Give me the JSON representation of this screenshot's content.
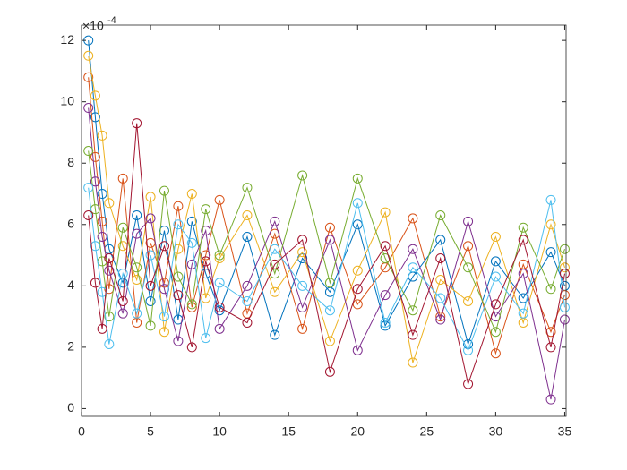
{
  "chart_data": {
    "type": "line",
    "y_multiplier": "×10",
    "y_multiplier_exponent": "-4",
    "x": [
      0.5,
      1,
      1.5,
      2,
      3,
      4,
      5,
      6,
      7,
      8,
      9,
      10,
      12,
      14,
      16,
      18,
      20,
      22,
      24,
      26,
      28,
      30,
      32,
      34,
      35
    ],
    "series": [
      {
        "color": "#0072BD",
        "values": [
          12,
          9.5,
          7,
          5.2,
          4.1,
          6.3,
          3.5,
          5.8,
          2.9,
          6.1,
          4.4,
          3.2,
          5.6,
          2.4,
          4.9,
          3.8,
          6.0,
          2.7,
          4.3,
          5.5,
          2.1,
          4.8,
          3.6,
          5.1,
          4.0
        ]
      },
      {
        "color": "#D95319",
        "values": [
          10.8,
          8.2,
          6.1,
          3.9,
          7.5,
          2.8,
          5.4,
          4.1,
          6.6,
          3.3,
          5.0,
          6.8,
          3.1,
          5.7,
          2.6,
          5.9,
          3.4,
          4.6,
          6.2,
          3.0,
          5.3,
          1.8,
          4.7,
          2.5,
          3.7
        ]
      },
      {
        "color": "#EDB120",
        "values": [
          11.5,
          10.2,
          8.9,
          6.7,
          5.3,
          4.2,
          6.9,
          2.5,
          5.2,
          7.0,
          3.6,
          4.9,
          6.3,
          3.8,
          5.1,
          2.2,
          4.5,
          6.4,
          1.5,
          4.2,
          3.5,
          5.6,
          2.8,
          6.0,
          4.6
        ]
      },
      {
        "color": "#7E2F8E",
        "values": [
          9.8,
          7.4,
          5.6,
          4.5,
          3.1,
          5.7,
          6.2,
          3.9,
          2.2,
          4.7,
          5.8,
          2.6,
          4.0,
          6.1,
          3.3,
          5.5,
          1.9,
          3.7,
          5.2,
          2.9,
          6.1,
          3.0,
          4.4,
          0.3,
          2.9
        ]
      },
      {
        "color": "#77AC30",
        "values": [
          8.4,
          6.5,
          4.8,
          3.0,
          5.9,
          4.6,
          2.7,
          7.1,
          4.3,
          3.4,
          6.5,
          5.0,
          7.2,
          4.4,
          7.6,
          4.1,
          7.5,
          4.9,
          3.2,
          6.3,
          4.6,
          2.5,
          5.9,
          3.9,
          5.2
        ]
      },
      {
        "color": "#4DBEEE",
        "values": [
          7.2,
          5.3,
          3.8,
          2.1,
          4.4,
          3.1,
          5.0,
          3.0,
          6.0,
          5.4,
          2.3,
          4.1,
          3.5,
          5.2,
          4.0,
          3.2,
          6.7,
          2.8,
          4.6,
          3.6,
          1.9,
          4.3,
          3.1,
          6.8,
          3.3
        ]
      },
      {
        "color": "#A2142F",
        "values": [
          6.3,
          4.1,
          2.6,
          4.9,
          3.5,
          9.3,
          4.0,
          5.3,
          3.7,
          2.0,
          4.8,
          3.3,
          2.8,
          4.7,
          5.5,
          1.2,
          3.9,
          5.3,
          2.4,
          4.9,
          0.8,
          3.4,
          5.5,
          2.0,
          4.4
        ]
      }
    ],
    "xlim": [
      0,
      35.1
    ],
    "xticks": [
      0,
      5,
      10,
      15,
      20,
      25,
      30,
      35
    ],
    "ylim": [
      -0.25,
      12.5
    ],
    "yticks": [
      0,
      2,
      4,
      6,
      8,
      10,
      12
    ],
    "marker": "circle",
    "grid": false
  }
}
